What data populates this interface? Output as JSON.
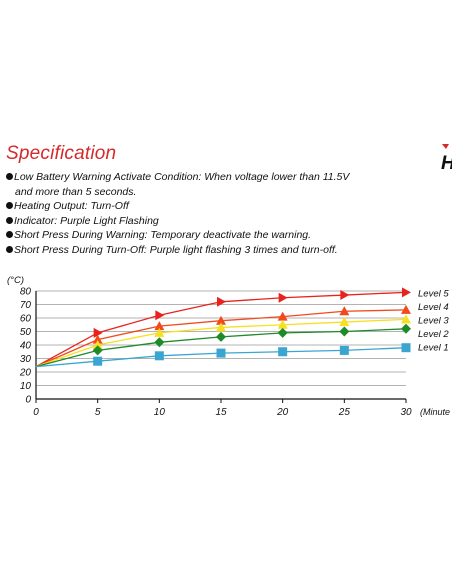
{
  "header": {
    "title": "Specification",
    "brand_letter": "H",
    "brand_mark_color": "#d62a2a"
  },
  "specs": [
    {
      "text": "Low Battery Warning Activate Condition: When voltage lower than 11.5V",
      "continuation": "and more than 5 seconds."
    },
    {
      "text": "Heating Output: Turn-Off"
    },
    {
      "text": "Indicator: Purple Light Flashing"
    },
    {
      "text": "Short Press During Warning: Temporary deactivate the warning."
    },
    {
      "text": "Short Press During Turn-Off: Purple light flashing 3 times and turn-off."
    }
  ],
  "chart_data": {
    "type": "line",
    "title": "",
    "ylabel": "(°C)",
    "xlabel": "(Minute",
    "x": [
      0,
      5,
      10,
      15,
      20,
      25,
      30
    ],
    "xlim": [
      0,
      30
    ],
    "ylim": [
      0,
      80
    ],
    "yticks": [
      0,
      10,
      20,
      30,
      40,
      50,
      60,
      70,
      80
    ],
    "grid": "horizontal",
    "legend_placement": "right, at line ends",
    "series": [
      {
        "name": "Level 5",
        "color": "#e8231e",
        "marker": "triangle-right",
        "values": [
          24,
          49,
          62,
          72,
          75,
          77,
          79
        ]
      },
      {
        "name": "Level 4",
        "color": "#f04a1d",
        "marker": "triangle",
        "values": [
          24,
          44,
          54,
          58,
          61,
          65,
          66
        ]
      },
      {
        "name": "Level 3",
        "color": "#f7e01f",
        "marker": "triangle",
        "values": [
          24,
          40,
          49,
          53,
          55,
          57,
          59
        ]
      },
      {
        "name": "Level 2",
        "color": "#1f8a2a",
        "marker": "diamond",
        "values": [
          24,
          36,
          42,
          46,
          49,
          50,
          52
        ]
      },
      {
        "name": "Level 1",
        "color": "#3aa6cf",
        "marker": "square",
        "values": [
          24,
          28,
          32,
          34,
          35,
          36,
          38
        ]
      }
    ]
  }
}
